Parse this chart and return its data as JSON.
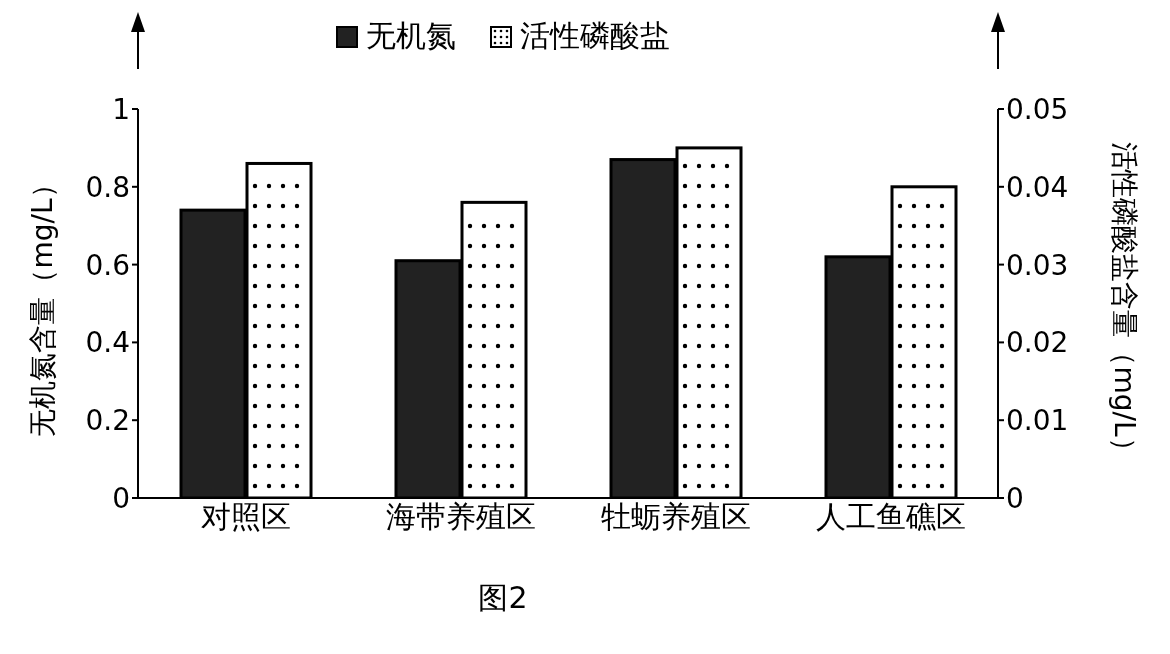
{
  "chart_data": {
    "type": "bar",
    "categories": [
      "对照区",
      "海带养殖区",
      "牡蛎养殖区",
      "人工鱼礁区"
    ],
    "series": [
      {
        "name": "无机氮",
        "color": "#222222",
        "values": [
          0.74,
          0.61,
          0.87,
          0.62
        ]
      },
      {
        "name": "活性磷酸盐",
        "color": "#ffffff",
        "axis": "y2",
        "values": [
          0.043,
          0.038,
          0.045,
          0.04
        ]
      }
    ],
    "ylabel": "无机氮含量（mg/L）",
    "y2label": "活性磷酸盐含量（mg/L）",
    "ylim": [
      0,
      1
    ],
    "yticks": [
      0,
      0.2,
      0.4,
      0.6,
      0.8,
      1
    ],
    "y2lim": [
      0,
      0.05
    ],
    "y2ticks": [
      0,
      0.01,
      0.02,
      0.03,
      0.04,
      0.05
    ],
    "legend": "top",
    "annotations": [
      "图2"
    ]
  }
}
